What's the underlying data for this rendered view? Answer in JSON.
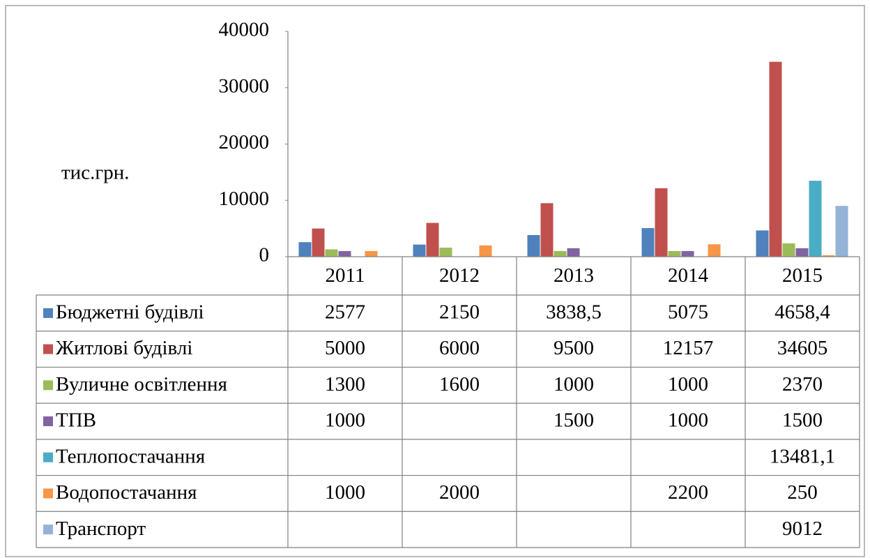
{
  "chart_data": {
    "type": "bar",
    "y_label": "тис.грн.",
    "categories": [
      "2011",
      "2012",
      "2013",
      "2014",
      "2015"
    ],
    "ylim": [
      0,
      40000
    ],
    "yticks": [
      0,
      10000,
      20000,
      30000,
      40000
    ],
    "series": [
      {
        "name": "Бюджетні будівлі",
        "color": "#4f81bd",
        "values": [
          2577,
          2150,
          3838.5,
          5075,
          4658.4
        ],
        "value_labels": [
          "2577",
          "2150",
          "3838,5",
          "5075",
          "4658,4"
        ]
      },
      {
        "name": "Житлові будівлі",
        "color": "#c0504d",
        "values": [
          5000,
          6000,
          9500,
          12157,
          34605
        ]
      },
      {
        "name": "Вуличне освітлення",
        "color": "#9bbb59",
        "values": [
          1300,
          1600,
          1000,
          1000,
          2370
        ]
      },
      {
        "name": "ТПВ",
        "color": "#8064a2",
        "values": [
          1000,
          null,
          1500,
          1000,
          1500
        ]
      },
      {
        "name": "Теплопостачання",
        "color": "#4bacc6",
        "values": [
          null,
          null,
          null,
          null,
          13481.1
        ],
        "value_labels": [
          null,
          null,
          null,
          null,
          "13481,1"
        ]
      },
      {
        "name": "Водопостачання",
        "color": "#f79646",
        "values": [
          1000,
          2000,
          null,
          2200,
          250
        ]
      },
      {
        "name": "Транспорт",
        "color": "#95b3d7",
        "values": [
          null,
          null,
          null,
          null,
          9012
        ]
      }
    ]
  }
}
